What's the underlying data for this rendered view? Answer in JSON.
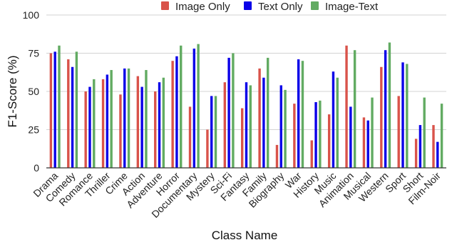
{
  "chart_data": {
    "type": "bar",
    "title": "",
    "xlabel": "Class Name",
    "ylabel": "F1-Score (%)",
    "ylim": [
      0,
      100
    ],
    "yticks": [
      "0",
      "25",
      "50",
      "75",
      "100"
    ],
    "grid": true,
    "legend_position": "top",
    "categories": [
      "Drama",
      "Comedy",
      "Romance",
      "Thriller",
      "Crime",
      "Action",
      "Adventure",
      "Horror",
      "Documentary",
      "Mystery",
      "Sci-Fi",
      "Fantasy",
      "Family",
      "Biography",
      "War",
      "History",
      "Music",
      "Animation",
      "Musical",
      "Western",
      "Sport",
      "Short",
      "Film-Noir"
    ],
    "series": [
      {
        "name": "Image Only",
        "color": "#d9534a",
        "values": [
          75,
          71,
          50,
          58,
          48,
          60,
          50,
          70,
          40,
          25,
          56,
          39,
          65,
          15,
          42,
          18,
          35,
          80,
          33,
          66,
          47,
          19,
          28
        ]
      },
      {
        "name": "Text Only",
        "color": "#0a00e8",
        "values": [
          76,
          66,
          53,
          61,
          65,
          53,
          56,
          73,
          78,
          47,
          72,
          56,
          59,
          54,
          71,
          43,
          63,
          40,
          31,
          77,
          69,
          28,
          17
        ]
      },
      {
        "name": "Image-Text",
        "color": "#62ab62",
        "values": [
          80,
          76,
          58,
          64,
          65,
          64,
          59,
          80,
          81,
          47,
          75,
          54,
          72,
          51,
          70,
          44,
          59,
          77,
          46,
          82,
          68,
          46,
          42
        ]
      }
    ]
  }
}
